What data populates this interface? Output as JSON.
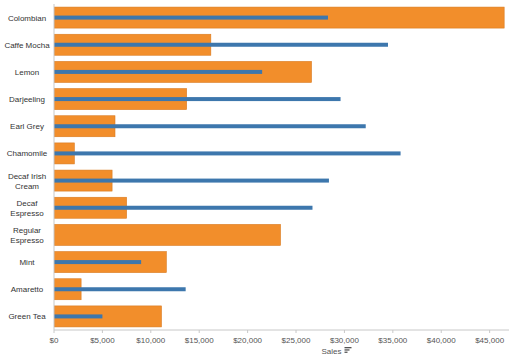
{
  "chart_data": {
    "type": "bar",
    "orientation": "horizontal",
    "x_label": "Sales",
    "categories": [
      "Colombian",
      "Caffe Mocha",
      "Lemon",
      "Darjeeling",
      "Earl Grey",
      "Chamomile",
      "Decaf Irish Cream",
      "Decaf Espresso",
      "Regular Espresso",
      "Mint",
      "Amaretto",
      "Green Tea"
    ],
    "series": [
      {
        "color": "#f28e2b",
        "values": [
          46500,
          16200,
          26600,
          13700,
          6300,
          2100,
          6000,
          7500,
          23400,
          11600,
          2800,
          11100
        ]
      },
      {
        "color": "#3d77ad",
        "values": [
          28300,
          34500,
          21500,
          29600,
          32200,
          35800,
          28400,
          26700,
          null,
          9000,
          13600,
          5000
        ]
      }
    ],
    "xlim": [
      0,
      47000
    ],
    "xticks": [
      {
        "value": 0,
        "label": "$0"
      },
      {
        "value": 5000,
        "label": "$5,000"
      },
      {
        "value": 10000,
        "label": "$10,000"
      },
      {
        "value": 15000,
        "label": "$15,000"
      },
      {
        "value": 20000,
        "label": "$20,000"
      },
      {
        "value": 25000,
        "label": "$25,000"
      },
      {
        "value": 30000,
        "label": "$30,000"
      },
      {
        "value": 35000,
        "label": "$35,000"
      },
      {
        "value": 40000,
        "label": "$40,000"
      },
      {
        "value": 45000,
        "label": "$45,000"
      }
    ],
    "grid": false
  }
}
